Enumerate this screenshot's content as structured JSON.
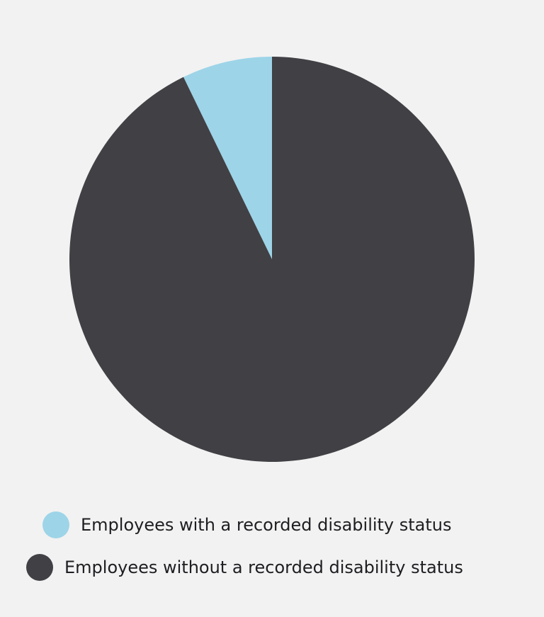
{
  "chart_data": {
    "type": "pie",
    "slices": [
      {
        "label": "Employees with a recorded disability status",
        "value": 7.2,
        "color": "#9dd4e8"
      },
      {
        "label": "Employees without a recorded disability status",
        "value": 92.8,
        "color": "#414045"
      }
    ],
    "legend_position": "bottom"
  }
}
